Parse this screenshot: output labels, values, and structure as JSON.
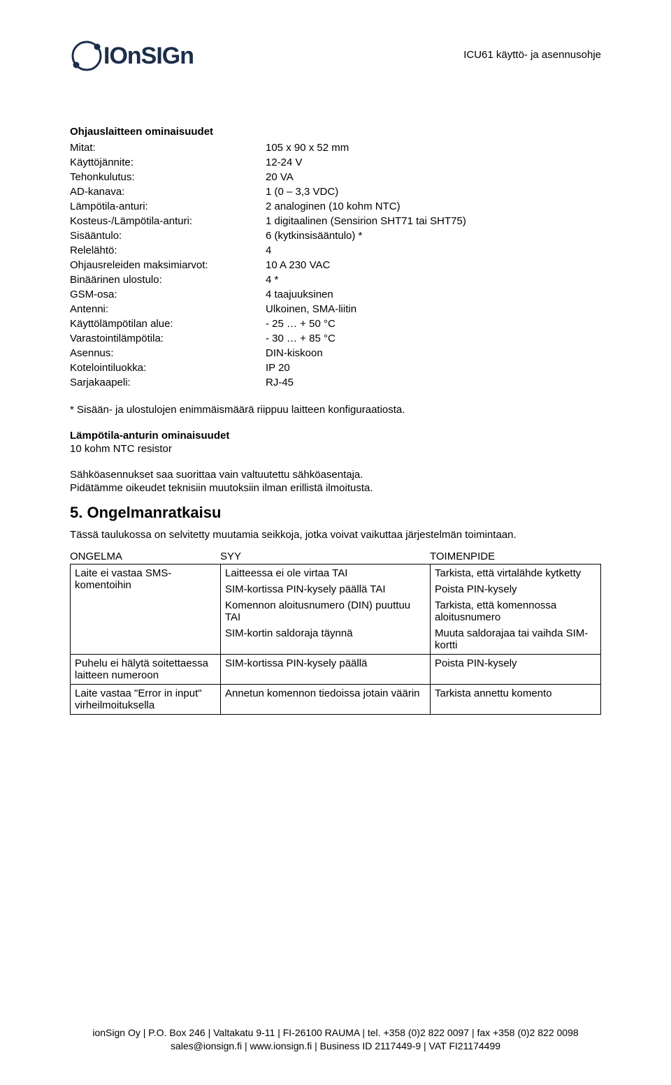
{
  "header": {
    "brand_text": "ionSign",
    "doc_title": "ICU61 käyttö- ja asennusohje"
  },
  "logo": {
    "color_dark": "#1c2e4a",
    "color_white": "#ffffff"
  },
  "specs_section": {
    "title": "Ohjauslaitteen ominaisuudet",
    "rows": [
      {
        "label": "Mitat:",
        "value": "105 x 90 x 52 mm"
      },
      {
        "label": "Käyttöjännite:",
        "value": "12-24 V"
      },
      {
        "label": "Tehonkulutus:",
        "value": "20 VA"
      },
      {
        "label": "AD-kanava:",
        "value": "1 (0 – 3,3 VDC)"
      },
      {
        "label": "Lämpötila-anturi:",
        "value": "2 analoginen (10 kohm NTC)"
      },
      {
        "label": "Kosteus-/Lämpötila-anturi:",
        "value": "1 digitaalinen (Sensirion SHT71 tai SHT75)"
      },
      {
        "label": "Sisääntulo:",
        "value": "6 (kytkinsisääntulo) *"
      },
      {
        "label": "Relelähtö:",
        "value": "4"
      },
      {
        "label": "Ohjausreleiden maksimiarvot:",
        "value": "10 A 230 VAC"
      },
      {
        "label": "Binäärinen ulostulo:",
        "value": "4 *"
      },
      {
        "label": "GSM-osa:",
        "value": "4 taajuuksinen"
      },
      {
        "label": "Antenni:",
        "value": "Ulkoinen, SMA-liitin"
      },
      {
        "label": "Käyttölämpötilan alue:",
        "value": "- 25 … + 50 °C"
      },
      {
        "label": "Varastointilämpötila:",
        "value": "- 30 … + 85 °C"
      },
      {
        "label": "Asennus:",
        "value": "DIN-kiskoon"
      },
      {
        "label": "Kotelointiluokka:",
        "value": "IP 20"
      },
      {
        "label": "Sarjakaapeli:",
        "value": "RJ-45"
      }
    ]
  },
  "footnote": "* Sisään- ja ulostulojen enimmäismäärä riippuu laitteen konfiguraatiosta.",
  "sensor_section": {
    "title": "Lämpötila-anturin ominaisuudet",
    "line": "10 kohm NTC resistor"
  },
  "install_para1": "Sähköasennukset saa suorittaa vain valtuutettu sähköasentaja.",
  "install_para2": "Pidätämme oikeudet teknisiin muutoksiin ilman erillistä ilmoitusta.",
  "troubleshoot": {
    "heading": "5. Ongelmanratkaisu",
    "intro": "Tässä taulukossa on selvitetty muutamia seikkoja, jotka voivat vaikuttaa järjestelmän toimintaan.",
    "headers": {
      "col1": "ONGELMA",
      "col2": "SYY",
      "col3": "TOIMENPIDE"
    },
    "rows": [
      {
        "problem": "Laite ei vastaa SMS-komentoihin",
        "causes": [
          "Laitteessa ei ole virtaa TAI",
          "SIM-kortissa PIN-kysely päällä TAI",
          "Komennon aloitusnumero (DIN) puuttuu TAI",
          "SIM-kortin saldoraja täynnä"
        ],
        "actions": [
          "Tarkista, että virtalähde kytketty",
          "Poista PIN-kysely",
          "Tarkista, että komennossa aloitusnumero",
          "Muuta saldorajaa tai vaihda SIM-kortti"
        ]
      },
      {
        "problem": "Puhelu ei hälytä soitettaessa laitteen numeroon",
        "causes": [
          "SIM-kortissa PIN-kysely päällä"
        ],
        "actions": [
          "Poista PIN-kysely"
        ]
      },
      {
        "problem": "Laite vastaa \"Error in input\" virheilmoituksella",
        "causes": [
          "Annetun komennon tiedoissa jotain väärin"
        ],
        "actions": [
          "Tarkista annettu komento"
        ]
      }
    ]
  },
  "footer": {
    "line1": "ionSign Oy | P.O. Box 246 | Valtakatu 9-11 | FI-26100 RAUMA | tel. +358 (0)2 822 0097 | fax +358 (0)2 822 0098",
    "line2": "sales@ionsign.fi | www.ionsign.fi | Business ID 2117449-9 | VAT FI21174499"
  }
}
